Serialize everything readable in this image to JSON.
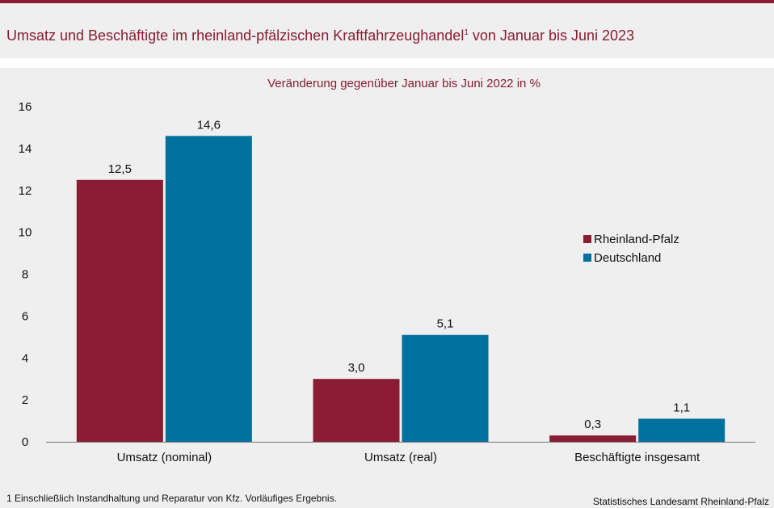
{
  "title": {
    "main": "Umsatz und Beschäftigte im rheinland-pfälzischen Kraftfahrzeughandel",
    "superscript": "1",
    "suffix": " von Januar bis Juni 2023"
  },
  "footnote": "1 Einschließlich Instandhaltung und Reparatur von Kfz. Vorläufiges Ergebnis.",
  "source": "Statistisches Landesamt Rheinland-Pfalz",
  "colors": {
    "rheinland_pfalz": "#8a1c33",
    "deutschland": "#00709e",
    "accent": "#8a1c33"
  },
  "chart_data": {
    "type": "bar",
    "title": "",
    "subtitle": "Veränderung gegenüber Januar bis Juni 2022 in %",
    "xlabel": "",
    "ylabel": "",
    "ylim": [
      0,
      16
    ],
    "yticks": [
      0,
      2,
      4,
      6,
      8,
      10,
      12,
      14,
      16
    ],
    "grid": false,
    "legend_position": "right",
    "categories": [
      "Umsatz (nominal)",
      "Umsatz (real)",
      "Beschäftigte insgesamt"
    ],
    "series": [
      {
        "name": "Rheinland-Pfalz",
        "values": [
          12.5,
          3.0,
          0.3
        ],
        "labels": [
          "12,5",
          "3,0",
          "0,3"
        ],
        "color": "#8a1c33"
      },
      {
        "name": "Deutschland",
        "values": [
          14.6,
          5.1,
          1.1
        ],
        "labels": [
          "14,6",
          "5,1",
          "1,1"
        ],
        "color": "#00709e"
      }
    ]
  }
}
